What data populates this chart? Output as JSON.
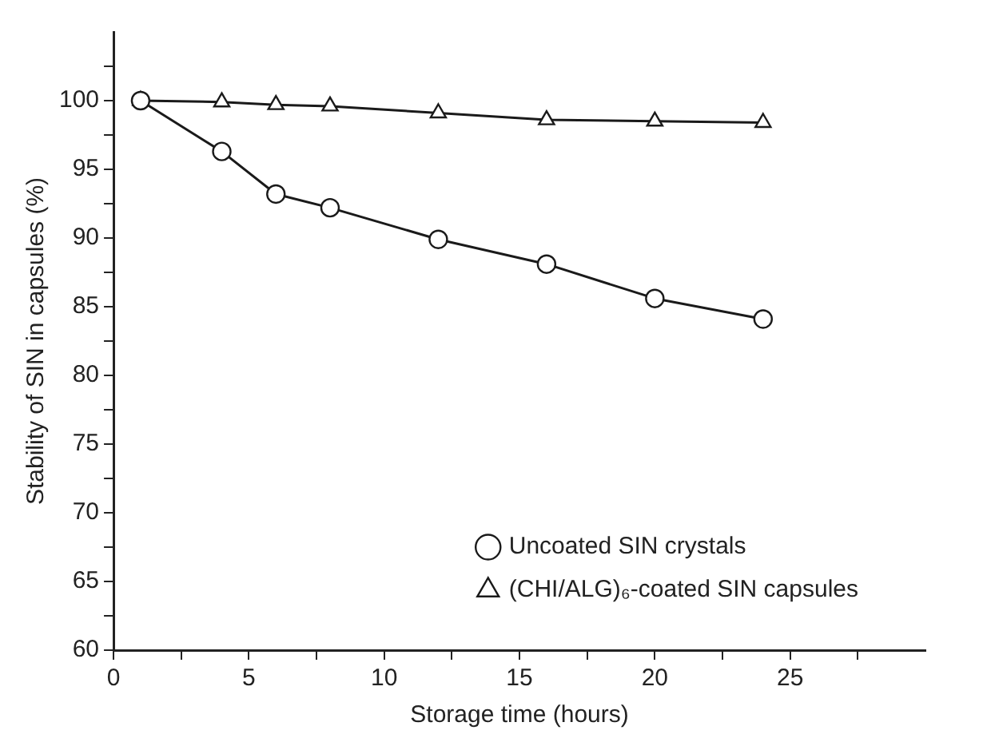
{
  "chart_data": {
    "type": "line",
    "xlabel": "Storage time (hours)",
    "ylabel": "Stability of SIN in capsules (%)",
    "xlim": [
      0,
      30
    ],
    "xticks": [
      0,
      {
        "value": 2.5,
        "label": null
      },
      5,
      {
        "value": 7.5,
        "label": null
      },
      10,
      {
        "value": 12.5,
        "label": null
      },
      15,
      {
        "value": 17.5,
        "label": null
      },
      20,
      {
        "value": 22.5,
        "label": null
      },
      25,
      {
        "value": 27.5,
        "label": null
      }
    ],
    "ylim": [
      60,
      105
    ],
    "yticks": [
      60,
      {
        "value": 62.5,
        "label": null
      },
      65,
      {
        "value": 67.5,
        "label": null
      },
      70,
      {
        "value": 72.5,
        "label": null
      },
      75,
      {
        "value": 77.5,
        "label": null
      },
      80,
      {
        "value": 82.5,
        "label": null
      },
      85,
      {
        "value": 87.5,
        "label": null
      },
      90,
      {
        "value": 92.5,
        "label": null
      },
      95,
      {
        "value": 97.5,
        "label": null
      },
      100,
      {
        "value": 102.5,
        "label": null
      }
    ],
    "x": [
      1,
      4,
      6,
      8,
      12,
      16,
      20,
      24
    ],
    "series": [
      {
        "name": "Uncoated SIN crystals",
        "color": "#1a1a1a",
        "marker": "circle",
        "values": [
          100,
          96.3,
          93.2,
          92.2,
          89.9,
          88.1,
          85.6,
          84.1
        ]
      },
      {
        "name": "(CHI/ALG)₆-coated SIN capsules",
        "color": "#1a1a1a",
        "marker": "triangle",
        "values": [
          100,
          99.9,
          99.7,
          99.6,
          99.1,
          98.6,
          98.5,
          98.4
        ]
      }
    ],
    "grid": false,
    "legend": "bottom right",
    "line_style": "solid"
  }
}
